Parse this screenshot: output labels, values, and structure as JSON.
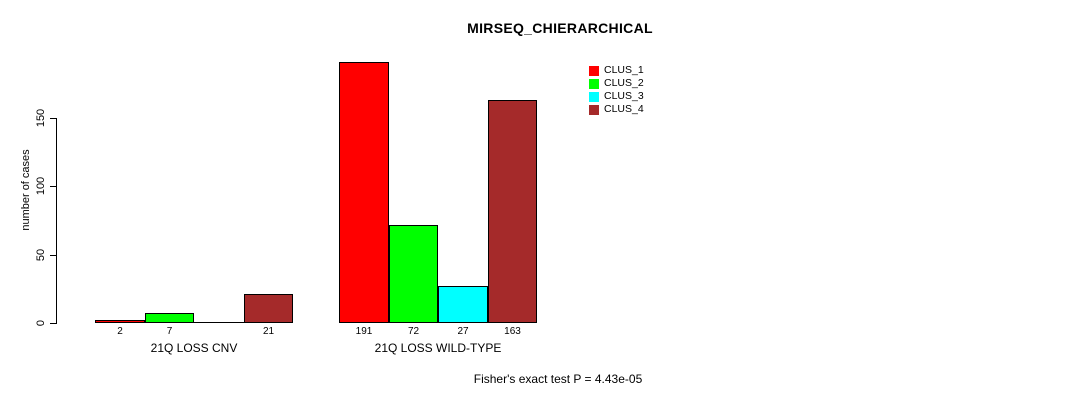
{
  "chart_data": {
    "type": "bar",
    "title": "MIRSEQ_CHIERARCHICAL",
    "ylabel": "number of cases",
    "xlabel": "",
    "ylim": [
      0,
      150
    ],
    "ytick_values": [
      0,
      50,
      100,
      150
    ],
    "ytick_labels": [
      "0",
      "50",
      "100",
      "150"
    ],
    "grid": false,
    "legend_position": "top-right",
    "categories": [
      "21Q LOSS CNV",
      "21Q LOSS WILD-TYPE"
    ],
    "series": [
      {
        "name": "CLUS_1",
        "color": "#FF0000",
        "values": [
          2,
          191
        ]
      },
      {
        "name": "CLUS_2",
        "color": "#00FF00",
        "values": [
          7,
          72
        ]
      },
      {
        "name": "CLUS_3",
        "color": "#00FFFF",
        "values": [
          0,
          27
        ]
      },
      {
        "name": "CLUS_4",
        "color": "#A52A2A",
        "values": [
          21,
          163
        ]
      }
    ],
    "bar_value_labels": [
      [
        "2",
        "7",
        "",
        "21"
      ],
      [
        "191",
        "72",
        "27",
        "163"
      ]
    ],
    "legend": [
      {
        "label": "CLUS_1",
        "color": "#FF0000"
      },
      {
        "label": "CLUS_2",
        "color": "#00FF00"
      },
      {
        "label": "CLUS_3",
        "color": "#00FFFF"
      },
      {
        "label": "CLUS_4",
        "color": "#A52A2A"
      }
    ],
    "annotation": "Fisher's exact test P = 4.43e-05"
  }
}
